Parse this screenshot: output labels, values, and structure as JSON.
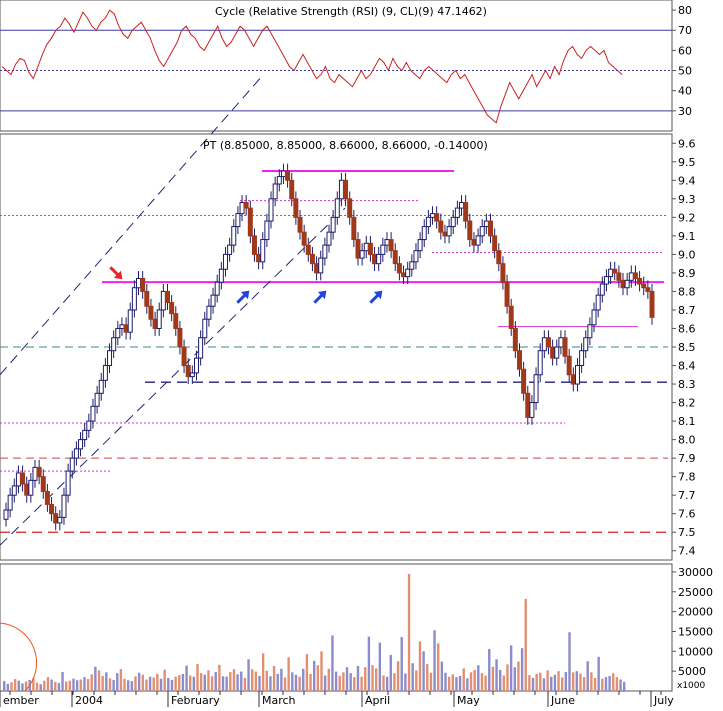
{
  "chart_data": [
    {
      "type": "line",
      "panel": "indicator",
      "title_text": "Cycle (Relative Strength (RSI) (9, CL)(9) 47.1462)",
      "ylim": [
        20,
        85
      ],
      "yticks": [
        "80",
        "70",
        "60",
        "50",
        "40",
        "30"
      ],
      "reference_lines": [
        {
          "value": 70,
          "style": "solid",
          "color": "#3a3aa0"
        },
        {
          "value": 50,
          "style": "dotted",
          "color": "#3a3aa0"
        },
        {
          "value": 30,
          "style": "solid",
          "color": "#3a3aa0"
        }
      ],
      "series": [
        {
          "color": "#cc2222",
          "values": [
            52,
            50,
            48,
            53,
            56,
            55,
            49,
            46,
            52,
            58,
            63,
            66,
            70,
            72,
            76,
            73,
            69,
            74,
            79,
            76,
            72,
            70,
            74,
            76,
            80,
            78,
            72,
            68,
            66,
            70,
            72,
            74,
            70,
            66,
            60,
            55,
            52,
            56,
            60,
            64,
            70,
            72,
            68,
            66,
            62,
            60,
            64,
            68,
            72,
            66,
            62,
            64,
            68,
            72,
            70,
            66,
            62,
            66,
            70,
            72,
            68,
            64,
            60,
            56,
            52,
            50,
            54,
            58,
            54,
            50,
            46,
            48,
            52,
            46,
            44,
            48,
            46,
            44,
            42,
            46,
            50,
            46,
            48,
            52,
            56,
            54,
            50,
            56,
            52,
            50,
            54,
            50,
            48,
            46,
            50,
            52,
            50,
            48,
            46,
            44,
            48,
            50,
            46,
            48,
            44,
            40,
            36,
            32,
            28,
            26,
            24,
            32,
            38,
            44,
            40,
            36,
            40,
            44,
            48,
            42,
            46,
            50,
            46,
            52,
            48,
            55,
            60,
            62,
            58,
            56,
            60,
            62,
            60,
            58,
            60,
            54,
            52,
            50,
            48
          ]
        }
      ]
    },
    {
      "type": "candlestick",
      "panel": "price",
      "title_text": "PT (8.85000, 8.85000, 8.66000, 8.66000, -0.14000)",
      "ylim": [
        7.35,
        9.65
      ],
      "yticks": [
        "9.6",
        "9.5",
        "9.4",
        "9.3",
        "9.2",
        "9.1",
        "9.0",
        "8.9",
        "8.8",
        "8.7",
        "8.6",
        "8.5",
        "8.4",
        "8.3",
        "8.2",
        "8.1",
        "8.0",
        "7.9",
        "7.8",
        "7.7",
        "7.6",
        "7.5",
        "7.4"
      ],
      "closes": [
        7.62,
        7.7,
        7.75,
        7.82,
        7.76,
        7.7,
        7.78,
        7.85,
        7.8,
        7.72,
        7.65,
        7.6,
        7.55,
        7.58,
        7.7,
        7.83,
        7.9,
        7.95,
        8.0,
        8.05,
        8.1,
        8.18,
        8.25,
        8.32,
        8.4,
        8.48,
        8.55,
        8.6,
        8.62,
        8.58,
        8.7,
        8.82,
        8.87,
        8.8,
        8.72,
        8.65,
        8.6,
        8.7,
        8.8,
        8.74,
        8.68,
        8.6,
        8.5,
        8.4,
        8.34,
        8.36,
        8.44,
        8.55,
        8.65,
        8.72,
        8.78,
        8.85,
        8.92,
        9.0,
        9.05,
        9.15,
        9.22,
        9.28,
        9.25,
        9.1,
        9.0,
        8.96,
        9.08,
        9.18,
        9.3,
        9.38,
        9.42,
        9.45,
        9.4,
        9.3,
        9.2,
        9.12,
        9.05,
        9.0,
        8.95,
        8.9,
        8.98,
        9.05,
        9.12,
        9.2,
        9.3,
        9.4,
        9.3,
        9.2,
        9.08,
        8.98,
        9.02,
        9.06,
        9.0,
        8.95,
        9.0,
        9.05,
        9.08,
        9.02,
        8.95,
        8.9,
        8.88,
        8.92,
        8.96,
        9.02,
        9.08,
        9.15,
        9.2,
        9.22,
        9.18,
        9.12,
        9.1,
        9.15,
        9.2,
        9.25,
        9.28,
        9.18,
        9.08,
        9.05,
        9.1,
        9.15,
        9.18,
        9.1,
        9.02,
        8.95,
        8.85,
        8.72,
        8.6,
        8.48,
        8.38,
        8.25,
        8.12,
        8.2,
        8.35,
        8.48,
        8.55,
        8.5,
        8.44,
        8.5,
        8.55,
        8.45,
        8.35,
        8.3,
        8.4,
        8.48,
        8.55,
        8.62,
        8.7,
        8.78,
        8.84,
        8.88,
        8.92,
        8.9,
        8.86,
        8.82,
        8.86,
        8.9,
        8.87,
        8.84,
        8.82,
        8.8,
        8.66
      ]
    },
    {
      "type": "bar",
      "panel": "volume",
      "unit_label": "x1000",
      "ylim": [
        0,
        32000
      ],
      "yticks": [
        "30000",
        "25000",
        "20000",
        "15000",
        "10000",
        "5000"
      ],
      "values": [
        2500,
        1800,
        2200,
        3000,
        2600,
        1900,
        2400,
        2800,
        3200,
        2100,
        1700,
        2600,
        3500,
        2900,
        2300,
        2000,
        4800,
        2400,
        2600,
        3100,
        2700,
        2900,
        3500,
        3000,
        4200,
        6100,
        5200,
        3800,
        4700,
        3200,
        2800,
        4500,
        5500,
        3100,
        2700,
        2500,
        3700,
        4600,
        4100,
        2900,
        3600,
        3400,
        4300,
        3100,
        5400,
        3300,
        2800,
        3600,
        4000,
        4300,
        6400,
        3900,
        3600,
        6800,
        4500,
        4100,
        5200,
        3700,
        4800,
        6600,
        3700,
        3600,
        4800,
        5500,
        4200,
        4900,
        3300,
        8000,
        5500,
        4900,
        3800,
        9500,
        5100,
        3700,
        6300,
        4300,
        5600,
        3400,
        8500,
        4700,
        4100,
        3600,
        5600,
        9300,
        4300,
        7600,
        6500,
        10000,
        3900,
        5600,
        14000,
        4900,
        3800,
        4700,
        6000,
        4500,
        3500,
        6300,
        3600,
        6000,
        13700,
        6500,
        5700,
        12200,
        3900,
        3600,
        9100,
        4500,
        7500,
        13600,
        4400,
        29500,
        7000,
        5200,
        12500,
        10000,
        6800,
        4600,
        15300,
        12000,
        7400,
        4600,
        3600,
        4200,
        3500,
        3800,
        5700,
        3200,
        4700,
        5300,
        6500,
        4500,
        3900,
        10600,
        6100,
        8000,
        5300,
        3900,
        6700,
        11500,
        6000,
        7400,
        10800,
        23200,
        4000,
        3300,
        4300,
        4600,
        3200,
        5200,
        3600,
        4100,
        5000,
        3400,
        4800,
        14800,
        4700,
        5000,
        4400,
        3500,
        7500,
        4700,
        3300,
        8600,
        3100,
        3500,
        3800,
        4500,
        3500,
        2900,
        2300
      ]
    }
  ],
  "x_axis": {
    "labels": [
      "ember",
      "2004",
      "February",
      "March",
      "April",
      "May",
      "June",
      "July"
    ]
  },
  "annotations": {
    "arrow_red": "red-arrow-icon",
    "arrow_blue": "blue-arrow-icon",
    "colors": {
      "up_candle": "#ffffff",
      "down_candle": "#a0391a",
      "candle_outline": "#1c1c6a",
      "magenta": "#ee22ee",
      "vol_up": "#8c8ccc",
      "vol_down": "#e09070"
    }
  }
}
